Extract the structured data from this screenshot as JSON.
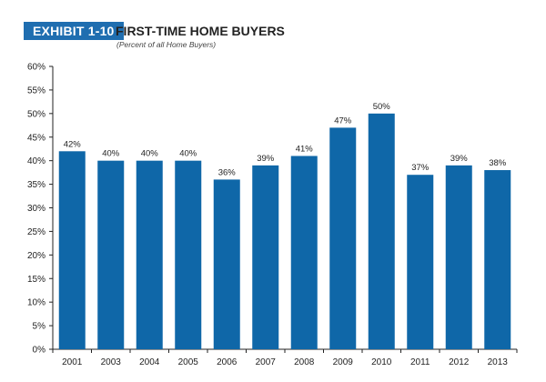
{
  "header": {
    "exhibit_label": "EXHIBIT 1-10",
    "title": "FIRST-TIME HOME BUYERS",
    "subtitle": "(Percent of all Home Buyers)"
  },
  "colors": {
    "bar": "#0f67a8",
    "badge": "#1f6eb0",
    "axis": "#222222"
  },
  "chart_data": {
    "type": "bar",
    "title": "FIRST-TIME HOME BUYERS",
    "subtitle": "(Percent of all Home Buyers)",
    "categories": [
      "2001",
      "2003",
      "2004",
      "2005",
      "2006",
      "2007",
      "2008",
      "2009",
      "2010",
      "2011",
      "2012",
      "2013"
    ],
    "values": [
      42,
      40,
      40,
      40,
      36,
      39,
      41,
      47,
      50,
      37,
      39,
      38
    ],
    "data_labels": [
      "42%",
      "40%",
      "40%",
      "40%",
      "36%",
      "39%",
      "41%",
      "47%",
      "50%",
      "37%",
      "39%",
      "38%"
    ],
    "yticks": [
      "0%",
      "5%",
      "10%",
      "15%",
      "20%",
      "25%",
      "30%",
      "35%",
      "40%",
      "45%",
      "50%",
      "55%",
      "60%"
    ],
    "ylim": [
      0,
      60
    ],
    "grid": false,
    "legend": "none"
  }
}
